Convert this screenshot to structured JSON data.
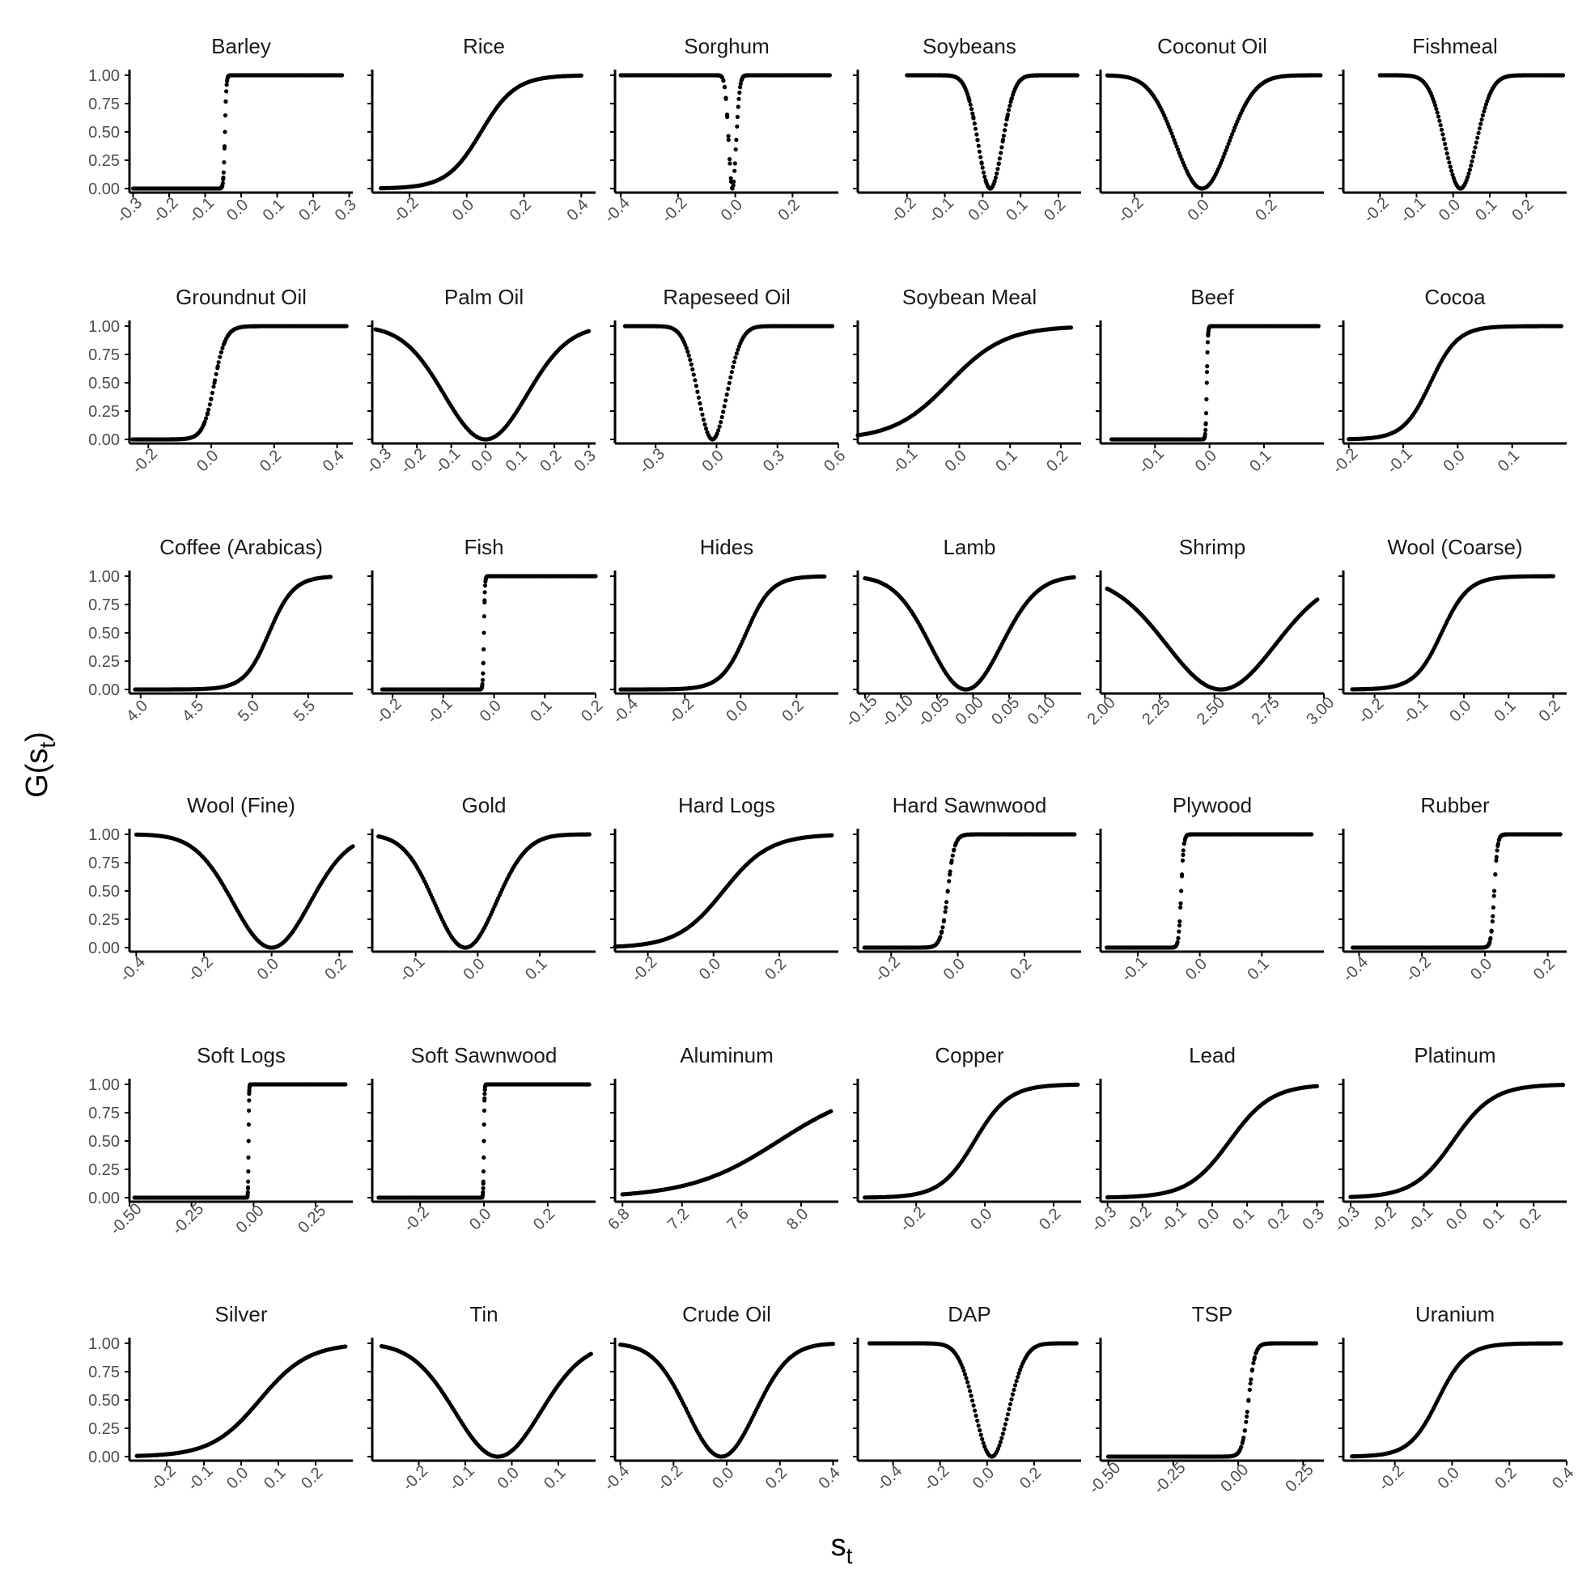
{
  "figure": {
    "xlabel": "s",
    "xlabel_sub": "t",
    "ylabel": "G(s",
    "ylabel_sub": "t",
    "ylabel_close": ")"
  },
  "chart_data": [
    {
      "type": "scatter",
      "title": "Barley",
      "shape": "step",
      "center": -0.045,
      "scale": 0.002,
      "xlim": [
        -0.31,
        0.31
      ],
      "ylim": [
        0,
        1
      ],
      "xticks": [
        -0.3,
        -0.2,
        -0.1,
        0.0,
        0.1,
        0.2,
        0.3
      ],
      "x_range": [
        -0.3,
        0.28
      ],
      "yticks": [
        0.0,
        0.25,
        0.5,
        0.75,
        1.0
      ]
    },
    {
      "type": "scatter",
      "title": "Rice",
      "shape": "sigmoid",
      "center": 0.05,
      "scale": 0.06,
      "xlim": [
        -0.33,
        0.45
      ],
      "ylim": [
        0,
        1
      ],
      "xticks": [
        -0.2,
        0.0,
        0.2,
        0.4
      ],
      "x_range": [
        -0.3,
        0.4
      ]
    },
    {
      "type": "scatter",
      "title": "Sorghum",
      "shape": "vshape",
      "center": -0.01,
      "scale": 0.018,
      "xlim": [
        -0.42,
        0.36
      ],
      "ylim": [
        0,
        1
      ],
      "xticks": [
        -0.4,
        -0.2,
        0.0,
        0.2
      ],
      "x_range": [
        -0.4,
        0.33
      ]
    },
    {
      "type": "scatter",
      "title": "Soybeans",
      "shape": "vshape",
      "center": 0.02,
      "scale": 0.045,
      "xlim": [
        -0.33,
        0.26
      ],
      "ylim": [
        0,
        1
      ],
      "xticks": [
        -0.2,
        -0.1,
        0.0,
        0.1,
        0.2
      ],
      "x_range": [
        -0.2,
        0.25
      ]
    },
    {
      "type": "scatter",
      "title": "Coconut Oil",
      "shape": "vshape",
      "center": 0.0,
      "scale": 0.11,
      "xlim": [
        -0.3,
        0.36
      ],
      "ylim": [
        0,
        1
      ],
      "xticks": [
        -0.2,
        0.0,
        0.2
      ],
      "x_range": [
        -0.28,
        0.35
      ]
    },
    {
      "type": "scatter",
      "title": "Fishmeal",
      "shape": "vshape",
      "center": 0.02,
      "scale": 0.06,
      "xlim": [
        -0.3,
        0.31
      ],
      "ylim": [
        0,
        1
      ],
      "xticks": [
        -0.2,
        -0.1,
        0.0,
        0.1,
        0.2
      ],
      "x_range": [
        -0.2,
        0.3
      ]
    },
    {
      "type": "scatter",
      "title": "Groundnut Oil",
      "shape": "sigmoid",
      "center": 0.01,
      "scale": 0.018,
      "xlim": [
        -0.26,
        0.45
      ],
      "ylim": [
        0,
        1
      ],
      "xticks": [
        -0.2,
        0.0,
        0.2,
        0.4
      ],
      "x_range": [
        -0.25,
        0.43
      ]
    },
    {
      "type": "scatter",
      "title": "Palm Oil",
      "shape": "vshape",
      "center": 0.0,
      "scale": 0.17,
      "xlim": [
        -0.33,
        0.32
      ],
      "ylim": [
        0,
        1
      ],
      "xticks": [
        -0.3,
        -0.2,
        -0.1,
        0.0,
        0.1,
        0.2,
        0.3
      ],
      "x_range": [
        -0.32,
        0.3
      ]
    },
    {
      "type": "scatter",
      "title": "Rapeseed Oil",
      "shape": "vshape",
      "center": -0.02,
      "scale": 0.1,
      "xlim": [
        -0.5,
        0.6
      ],
      "ylim": [
        0,
        1
      ],
      "xticks": [
        -0.3,
        0.0,
        0.3,
        0.6
      ],
      "x_range": [
        -0.45,
        0.57
      ]
    },
    {
      "type": "scatter",
      "title": "Soybean Meal",
      "shape": "sigmoid",
      "center": -0.02,
      "scale": 0.055,
      "xlim": [
        -0.2,
        0.24
      ],
      "ylim": [
        0,
        1
      ],
      "xticks": [
        -0.1,
        0.0,
        0.1,
        0.2
      ],
      "x_range": [
        -0.2,
        0.22
      ]
    },
    {
      "type": "scatter",
      "title": "Beef",
      "shape": "step",
      "center": -0.005,
      "scale": 0.001,
      "xlim": [
        -0.2,
        0.21
      ],
      "ylim": [
        0,
        1
      ],
      "xticks": [
        -0.1,
        0.0,
        0.1
      ],
      "x_range": [
        -0.18,
        0.2
      ]
    },
    {
      "type": "scatter",
      "title": "Cocoa",
      "shape": "sigmoid",
      "center": -0.05,
      "scale": 0.025,
      "xlim": [
        -0.21,
        0.2
      ],
      "ylim": [
        0,
        1
      ],
      "xticks": [
        -0.2,
        -0.1,
        0.0,
        0.1
      ],
      "x_range": [
        -0.2,
        0.19
      ]
    },
    {
      "type": "scatter",
      "title": "Coffee (Arabicas)",
      "shape": "sigmoid",
      "center": 5.15,
      "scale": 0.11,
      "xlim": [
        3.9,
        5.9
      ],
      "ylim": [
        0,
        1
      ],
      "xticks": [
        4.0,
        4.5,
        5.0,
        5.5
      ],
      "x_range": [
        3.95,
        5.7
      ]
    },
    {
      "type": "scatter",
      "title": "Fish",
      "shape": "step",
      "center": -0.02,
      "scale": 0.001,
      "xlim": [
        -0.24,
        0.2
      ],
      "ylim": [
        0,
        1
      ],
      "xticks": [
        -0.2,
        -0.1,
        0.0,
        0.1,
        0.2
      ],
      "x_range": [
        -0.22,
        0.2
      ]
    },
    {
      "type": "scatter",
      "title": "Hides",
      "shape": "sigmoid",
      "center": 0.02,
      "scale": 0.045,
      "xlim": [
        -0.45,
        0.35
      ],
      "ylim": [
        0,
        1
      ],
      "xticks": [
        -0.4,
        -0.2,
        0.0,
        0.2
      ],
      "x_range": [
        -0.43,
        0.3
      ]
    },
    {
      "type": "scatter",
      "title": "Lamb",
      "shape": "vshape",
      "center": -0.01,
      "scale": 0.07,
      "xlim": [
        -0.16,
        0.15
      ],
      "ylim": [
        0,
        1
      ],
      "xticks": [
        -0.15,
        -0.1,
        -0.05,
        0.0,
        0.05,
        0.1
      ],
      "x_range": [
        -0.15,
        0.14
      ]
    },
    {
      "type": "scatter",
      "title": "Shrimp",
      "shape": "vshape",
      "center": 2.53,
      "scale": 0.35,
      "xlim": [
        1.98,
        3.0
      ],
      "ylim": [
        0,
        1
      ],
      "xticks": [
        2.0,
        2.25,
        2.5,
        2.75,
        3.0
      ],
      "x_range": [
        2.01,
        2.97
      ]
    },
    {
      "type": "scatter",
      "title": "Wool (Coarse)",
      "shape": "sigmoid",
      "center": -0.05,
      "scale": 0.03,
      "xlim": [
        -0.27,
        0.23
      ],
      "ylim": [
        0,
        1
      ],
      "xticks": [
        -0.2,
        -0.1,
        0.0,
        0.1,
        0.2
      ],
      "x_range": [
        -0.25,
        0.2
      ]
    },
    {
      "type": "scatter",
      "title": "Wool (Fine)",
      "shape": "vshape",
      "center": 0.0,
      "scale": 0.16,
      "xlim": [
        -0.42,
        0.24
      ],
      "ylim": [
        0,
        1
      ],
      "xticks": [
        -0.4,
        -0.2,
        0.0,
        0.2
      ],
      "x_range": [
        -0.4,
        0.24
      ]
    },
    {
      "type": "scatter",
      "title": "Gold",
      "shape": "vshape",
      "center": -0.02,
      "scale": 0.07,
      "xlim": [
        -0.17,
        0.19
      ],
      "ylim": [
        0,
        1
      ],
      "xticks": [
        -0.1,
        0.0,
        0.1
      ],
      "x_range": [
        -0.16,
        0.18
      ]
    },
    {
      "type": "scatter",
      "title": "Hard Logs",
      "shape": "sigmoid",
      "center": 0.03,
      "scale": 0.07,
      "xlim": [
        -0.3,
        0.38
      ],
      "ylim": [
        0,
        1
      ],
      "xticks": [
        -0.2,
        0.0,
        0.2
      ],
      "x_range": [
        -0.3,
        0.36
      ]
    },
    {
      "type": "scatter",
      "title": "Hard Sawnwood",
      "shape": "sigmoid",
      "center": -0.03,
      "scale": 0.01,
      "xlim": [
        -0.3,
        0.37
      ],
      "ylim": [
        0,
        1
      ],
      "xticks": [
        -0.2,
        0.0,
        0.2
      ],
      "x_range": [
        -0.28,
        0.35
      ]
    },
    {
      "type": "scatter",
      "title": "Plywood",
      "shape": "sigmoid",
      "center": -0.03,
      "scale": 0.002,
      "xlim": [
        -0.16,
        0.2
      ],
      "ylim": [
        0,
        1
      ],
      "xticks": [
        -0.1,
        0.0,
        0.1
      ],
      "x_range": [
        -0.15,
        0.18
      ]
    },
    {
      "type": "scatter",
      "title": "Rubber",
      "shape": "sigmoid",
      "center": 0.03,
      "scale": 0.005,
      "xlim": [
        -0.45,
        0.26
      ],
      "ylim": [
        0,
        1
      ],
      "xticks": [
        -0.4,
        -0.2,
        0.0,
        0.2
      ],
      "x_range": [
        -0.42,
        0.24
      ]
    },
    {
      "type": "scatter",
      "title": "Soft Logs",
      "shape": "step",
      "center": -0.02,
      "scale": 0.001,
      "xlim": [
        -0.5,
        0.4
      ],
      "ylim": [
        0,
        1
      ],
      "xticks": [
        -0.5,
        -0.25,
        0.0,
        0.25
      ],
      "x_range": [
        -0.48,
        0.37
      ]
    },
    {
      "type": "scatter",
      "title": "Soft Sawnwood",
      "shape": "step",
      "center": 0.0,
      "scale": 0.001,
      "xlim": [
        -0.35,
        0.35
      ],
      "ylim": [
        0,
        1
      ],
      "xticks": [
        -0.2,
        0.0,
        0.2
      ],
      "x_range": [
        -0.33,
        0.33
      ]
    },
    {
      "type": "scatter",
      "title": "Aluminum",
      "shape": "sigmoid",
      "center": 7.85,
      "scale": 0.3,
      "xlim": [
        6.75,
        8.25
      ],
      "ylim": [
        0,
        1
      ],
      "xticks": [
        6.8,
        7.2,
        7.6,
        8.0
      ],
      "x_range": [
        6.8,
        8.2
      ]
    },
    {
      "type": "scatter",
      "title": "Copper",
      "shape": "sigmoid",
      "center": -0.03,
      "scale": 0.05,
      "xlim": [
        -0.37,
        0.28
      ],
      "ylim": [
        0,
        1
      ],
      "xticks": [
        -0.2,
        0.0,
        0.2
      ],
      "x_range": [
        -0.35,
        0.27
      ]
    },
    {
      "type": "scatter",
      "title": "Lead",
      "shape": "sigmoid",
      "center": 0.05,
      "scale": 0.06,
      "xlim": [
        -0.32,
        0.32
      ],
      "ylim": [
        0,
        1
      ],
      "xticks": [
        -0.3,
        -0.2,
        -0.1,
        0.0,
        0.1,
        0.2,
        0.3
      ],
      "x_range": [
        -0.3,
        0.3
      ]
    },
    {
      "type": "scatter",
      "title": "Platinum",
      "shape": "sigmoid",
      "center": -0.02,
      "scale": 0.055,
      "xlim": [
        -0.32,
        0.29
      ],
      "ylim": [
        0,
        1
      ],
      "xticks": [
        -0.3,
        -0.2,
        -0.1,
        0.0,
        0.1,
        0.2
      ],
      "x_range": [
        -0.3,
        0.28
      ]
    },
    {
      "type": "scatter",
      "title": "Silver",
      "shape": "sigmoid",
      "center": 0.05,
      "scale": 0.065,
      "xlim": [
        -0.3,
        0.3
      ],
      "ylim": [
        0,
        1
      ],
      "xticks": [
        -0.2,
        -0.1,
        0.0,
        0.1,
        0.2
      ],
      "x_range": [
        -0.28,
        0.28
      ]
    },
    {
      "type": "scatter",
      "title": "Tin",
      "shape": "vshape",
      "center": -0.03,
      "scale": 0.13,
      "xlim": [
        -0.3,
        0.18
      ],
      "ylim": [
        0,
        1
      ],
      "xticks": [
        -0.2,
        -0.1,
        0.0,
        0.1
      ],
      "x_range": [
        -0.28,
        0.17
      ]
    },
    {
      "type": "scatter",
      "title": "Crude Oil",
      "shape": "vshape",
      "center": -0.02,
      "scale": 0.18,
      "xlim": [
        -0.42,
        0.42
      ],
      "ylim": [
        0,
        1
      ],
      "xticks": [
        -0.4,
        -0.2,
        0.0,
        0.2,
        0.4
      ],
      "x_range": [
        -0.4,
        0.4
      ]
    },
    {
      "type": "scatter",
      "title": "DAP",
      "shape": "vshape",
      "center": 0.02,
      "scale": 0.1,
      "xlim": [
        -0.55,
        0.4
      ],
      "ylim": [
        0,
        1
      ],
      "xticks": [
        -0.4,
        -0.2,
        0.0,
        0.2
      ],
      "x_range": [
        -0.5,
        0.38
      ]
    },
    {
      "type": "scatter",
      "title": "TSP",
      "shape": "sigmoid",
      "center": 0.04,
      "scale": 0.012,
      "xlim": [
        -0.53,
        0.33
      ],
      "ylim": [
        0,
        1
      ],
      "xticks": [
        -0.5,
        -0.25,
        0.0,
        0.25
      ],
      "x_range": [
        -0.5,
        0.3
      ]
    },
    {
      "type": "scatter",
      "title": "Uranium",
      "shape": "sigmoid",
      "center": -0.05,
      "scale": 0.05,
      "xlim": [
        -0.38,
        0.4
      ],
      "ylim": [
        0,
        1
      ],
      "xticks": [
        -0.2,
        0.0,
        0.2,
        0.4
      ],
      "x_range": [
        -0.35,
        0.38
      ]
    }
  ]
}
